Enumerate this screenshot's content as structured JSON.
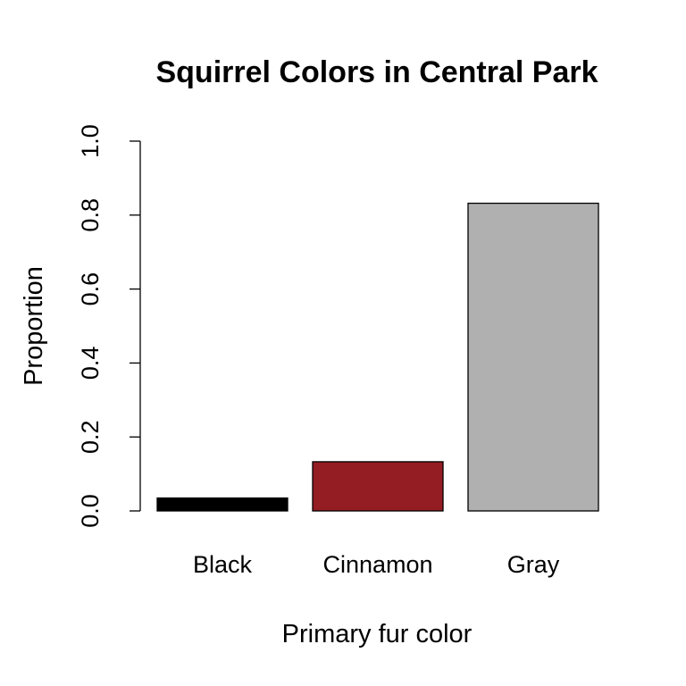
{
  "chart_data": {
    "type": "bar",
    "title": "Squirrel Colors in Central Park",
    "xlabel": "Primary fur color",
    "ylabel": "Proportion",
    "categories": [
      "Black",
      "Cinnamon",
      "Gray"
    ],
    "values": [
      0.035,
      0.133,
      0.832
    ],
    "colors": [
      "#000000",
      "#941c23",
      "#b0b0b0"
    ],
    "ylim": [
      0,
      1.0
    ],
    "yticks": [
      "0.0",
      "0.2",
      "0.4",
      "0.6",
      "0.8",
      "1.0"
    ],
    "grid": false,
    "legend": "none"
  }
}
